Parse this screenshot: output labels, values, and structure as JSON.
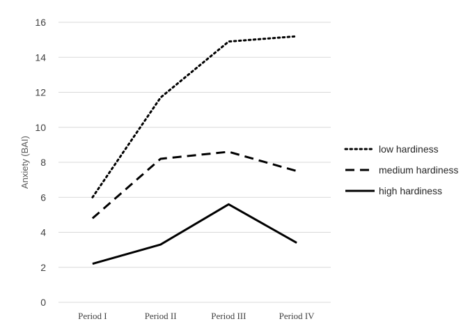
{
  "chart_data": {
    "type": "line",
    "title": "",
    "xlabel": "",
    "ylabel": "Anxiety (BAI)",
    "ylim": [
      0,
      16
    ],
    "yticks": [
      0,
      2,
      4,
      6,
      8,
      10,
      12,
      14,
      16
    ],
    "categories": [
      "Period I",
      "Period II",
      "Period III",
      "Period IV"
    ],
    "grid": true,
    "legend_position": "right",
    "series": [
      {
        "name": "low hardiness",
        "style": "dotted",
        "color": "#000000",
        "values": [
          6.0,
          11.7,
          14.9,
          15.2
        ]
      },
      {
        "name": "medium hardiness",
        "style": "dashed",
        "color": "#000000",
        "values": [
          4.8,
          8.2,
          8.6,
          7.5
        ]
      },
      {
        "name": "high hardiness",
        "style": "solid",
        "color": "#000000",
        "values": [
          2.2,
          3.3,
          5.6,
          3.4
        ]
      }
    ]
  }
}
